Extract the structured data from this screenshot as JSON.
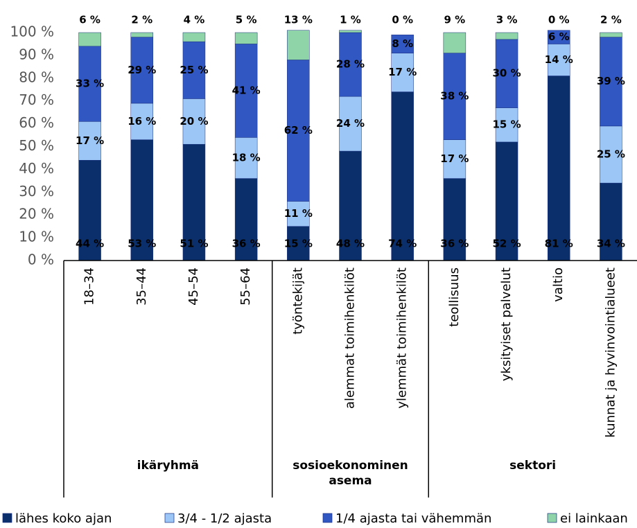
{
  "chart_data": {
    "type": "stacked_bar",
    "categories": [
      "18–34",
      "35–44",
      "45–54",
      "55–64",
      "työntekijät",
      "alemmat toimihenkilöt",
      "ylemmät toimihenkilöt",
      "teollisuus",
      "yksityiset palvelut",
      "valtio",
      "kunnat ja hyvinvointialueet"
    ],
    "groups": [
      {
        "label": "ikäryhmä",
        "size": 4
      },
      {
        "label": "sosioekonominen asema",
        "size": 3
      },
      {
        "label": "sektori",
        "size": 4
      }
    ],
    "series": [
      {
        "name": "lähes koko ajan",
        "color": "#0b2f6b",
        "values": [
          44,
          53,
          51,
          36,
          15,
          48,
          74,
          36,
          52,
          81,
          34
        ],
        "value_labels": [
          "44 %",
          "53 %",
          "51 %",
          "36 %",
          "15 %",
          "48 %",
          "74 %",
          "36 %",
          "52 %",
          "81 %",
          "34 %"
        ]
      },
      {
        "name": "3/4 - 1/2 ajasta",
        "color": "#9cc6f5",
        "values": [
          17,
          16,
          20,
          18,
          11,
          24,
          17,
          17,
          15,
          14,
          25
        ],
        "value_labels": [
          "17 %",
          "16 %",
          "20 %",
          "18 %",
          "11 %",
          "24 %",
          "17 %",
          "17 %",
          "15 %",
          "14 %",
          "25 %"
        ]
      },
      {
        "name": "1/4 ajasta tai vähemmän",
        "color": "#3057c2",
        "values": [
          33,
          29,
          25,
          41,
          62,
          28,
          8,
          38,
          30,
          6,
          39
        ],
        "value_labels": [
          "33 %",
          "29 %",
          "25 %",
          "41 %",
          "62 %",
          "28 %",
          "8 %",
          "38 %",
          "30 %",
          "6 %",
          "39 %"
        ]
      },
      {
        "name": "ei lainkaan",
        "color": "#8fd3a8",
        "values": [
          6,
          2,
          4,
          5,
          13,
          1,
          0,
          9,
          3,
          0,
          2
        ],
        "value_labels": [
          "6 %",
          "2 %",
          "4 %",
          "5 %",
          "13 %",
          "1 %",
          "0 %",
          "9 %",
          "3 %",
          "0 %",
          "2 %"
        ]
      }
    ],
    "ylim": [
      0,
      100
    ],
    "yticks": [
      {
        "value": 0,
        "label": "0 %"
      },
      {
        "value": 10,
        "label": "10 %"
      },
      {
        "value": 20,
        "label": "20 %"
      },
      {
        "value": 30,
        "label": "30 %"
      },
      {
        "value": 40,
        "label": "40 %"
      },
      {
        "value": 50,
        "label": "50 %"
      },
      {
        "value": 60,
        "label": "60 %"
      },
      {
        "value": 70,
        "label": "70 %"
      },
      {
        "value": 80,
        "label": "80 %"
      },
      {
        "value": 90,
        "label": "90 %"
      },
      {
        "value": 100,
        "label": "100 %"
      }
    ],
    "grid": false
  }
}
